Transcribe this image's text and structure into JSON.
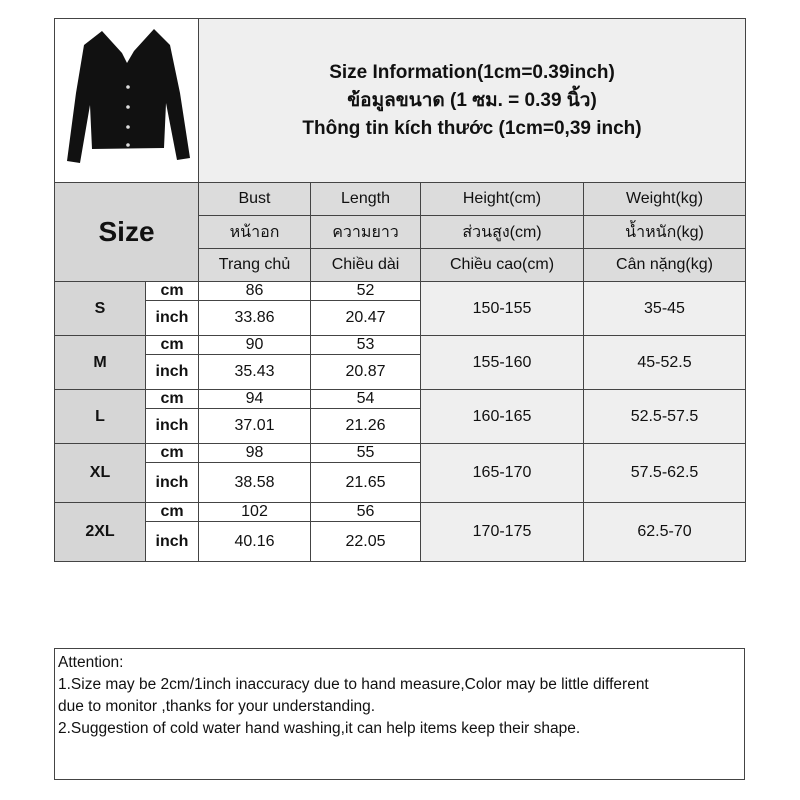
{
  "title": {
    "line1": "Size Information(1cm=0.39inch)",
    "line2": "ข้อมูลขนาด (1 ซม. = 0.39 นิ้ว)",
    "line3": "Thông tin kích thước (1cm=0,39 inch)"
  },
  "size_label": "Size",
  "headers": [
    [
      "Bust",
      "Length",
      "Height(cm)",
      "Weight(kg)"
    ],
    [
      "หน้าอก",
      "ความยาว",
      "ส่วนสูง(cm)",
      "น้ำหนัก(kg)"
    ],
    [
      "Trang chủ",
      "Chiều dài",
      "Chiều cao(cm)",
      "Cân nặng(kg)"
    ]
  ],
  "units": {
    "cm": "cm",
    "inch": "inch"
  },
  "rows": [
    {
      "size": "S",
      "cm": [
        "86",
        "52"
      ],
      "inch": [
        "33.86",
        "20.47"
      ],
      "height": "150-155",
      "weight": "35-45"
    },
    {
      "size": "M",
      "cm": [
        "90",
        "53"
      ],
      "inch": [
        "35.43",
        "20.87"
      ],
      "height": "155-160",
      "weight": "45-52.5"
    },
    {
      "size": "L",
      "cm": [
        "94",
        "54"
      ],
      "inch": [
        "37.01",
        "21.26"
      ],
      "height": "160-165",
      "weight": "52.5-57.5"
    },
    {
      "size": "XL",
      "cm": [
        "98",
        "55"
      ],
      "inch": [
        "38.58",
        "21.65"
      ],
      "height": "165-170",
      "weight": "57.5-62.5"
    },
    {
      "size": "2XL",
      "cm": [
        "102",
        "56"
      ],
      "inch": [
        "40.16",
        "22.05"
      ],
      "height": "170-175",
      "weight": "62.5-70"
    }
  ],
  "attention": {
    "heading": "Attention:",
    "line1": "1.Size may be 2cm/1inch inaccuracy due to hand measure,Color may be little different",
    "line1b": "due to monitor ,thanks for your understanding.",
    "line2": "2.Suggestion of cold water hand washing,it can help items keep their shape."
  }
}
